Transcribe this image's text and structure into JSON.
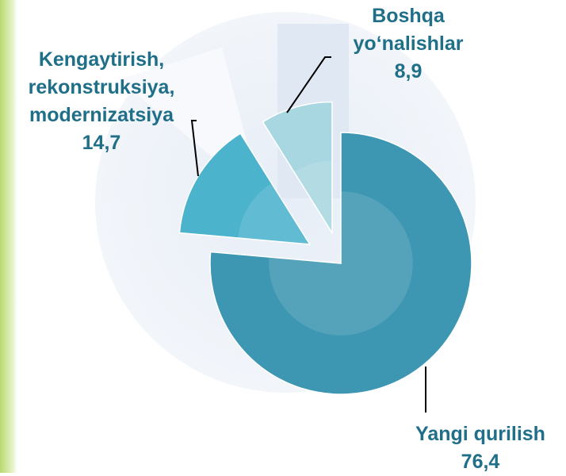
{
  "chart_data": {
    "type": "pie",
    "categories": [
      "Yangi qurilish",
      "Kengaytirish, rekonstruksiya, modernizatsiya",
      "Boshqa yo‘nalishlar"
    ],
    "values": [
      76.4,
      14.7,
      8.9
    ],
    "value_labels": [
      "76,4",
      "14,7",
      "8,9"
    ],
    "colors": [
      "#3e97b2",
      "#4cb3cd",
      "#a9d7e1"
    ]
  }
}
